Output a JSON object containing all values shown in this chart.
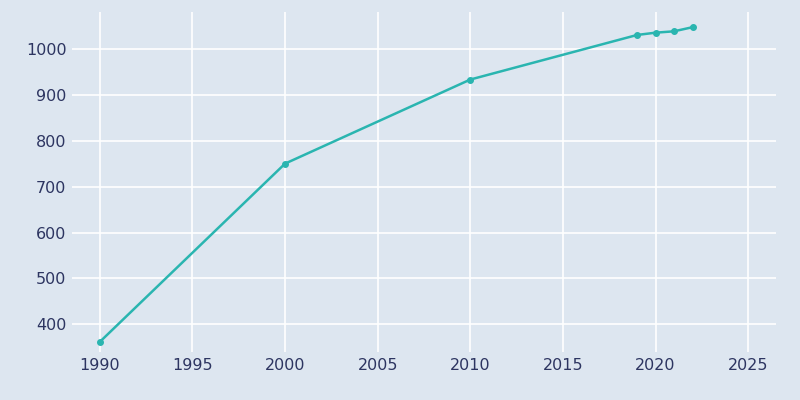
{
  "years": [
    1990,
    2000,
    2010,
    2019,
    2020,
    2021,
    2022
  ],
  "population": [
    362,
    750,
    933,
    1030,
    1035,
    1038,
    1047
  ],
  "line_color": "#2ab5b0",
  "marker_color": "#2ab5b0",
  "background_color": "#dde6f0",
  "grid_color": "#ffffff",
  "xlim": [
    1988.5,
    2026.5
  ],
  "ylim": [
    340,
    1080
  ],
  "xticks": [
    1990,
    1995,
    2000,
    2005,
    2010,
    2015,
    2020,
    2025
  ],
  "yticks": [
    400,
    500,
    600,
    700,
    800,
    900,
    1000
  ],
  "tick_label_color": "#2d3561",
  "tick_fontsize": 11.5,
  "line_width": 1.8,
  "marker_size": 4
}
